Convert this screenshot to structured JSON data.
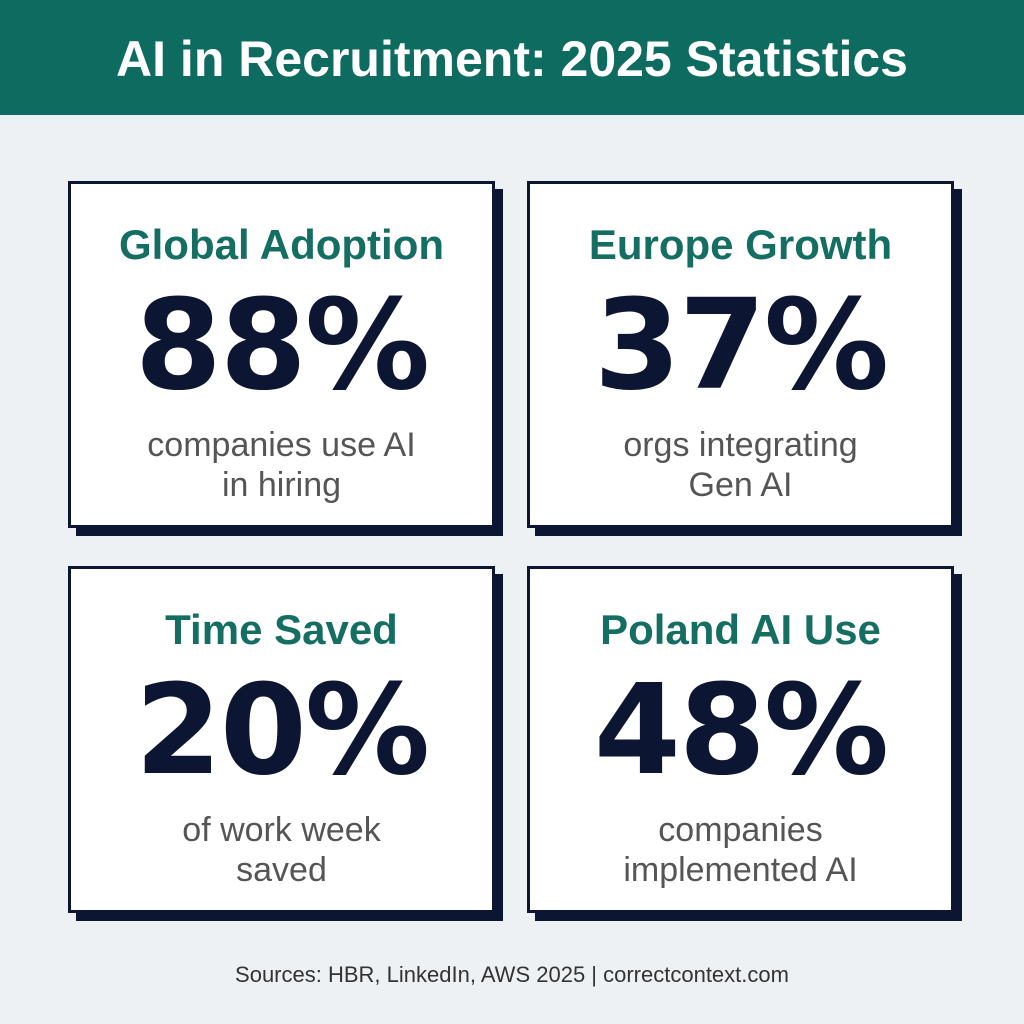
{
  "header": {
    "title": "AI in Recruitment: 2025 Statistics"
  },
  "cards": [
    {
      "title": "Global Adoption",
      "value": "88%",
      "description": [
        "companies use AI",
        "in hiring"
      ]
    },
    {
      "title": "Europe Growth",
      "value": "37%",
      "description": [
        "orgs integrating",
        "Gen AI"
      ]
    },
    {
      "title": "Time Saved",
      "value": "20%",
      "description": [
        "of work week",
        "saved"
      ]
    },
    {
      "title": "Poland AI Use",
      "value": "48%",
      "description": [
        "companies",
        "implemented AI"
      ]
    }
  ],
  "footer": {
    "sources": "Sources: HBR, LinkedIn, AWS 2025 | correctcontext.com"
  }
}
